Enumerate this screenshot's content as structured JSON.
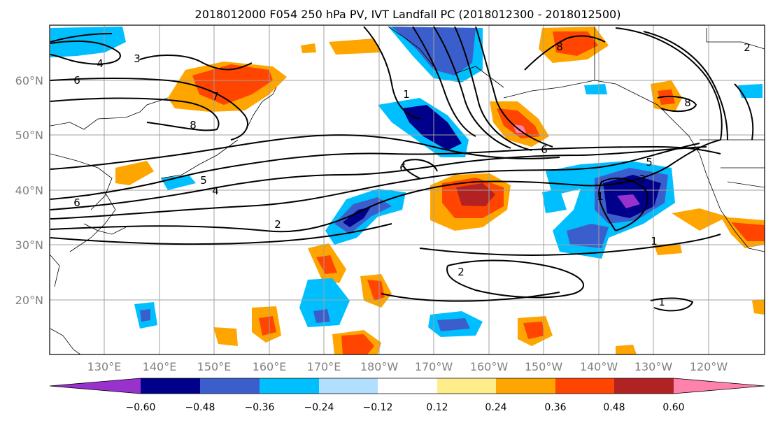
{
  "title": "2018012000 F054 250 hPa PV, IVT Landfall PC (2018012300 - 2018012500)",
  "lat_labels": [
    "60°N",
    "50°N",
    "40°N",
    "30°N",
    "20°N"
  ],
  "lon_labels": [
    "130°E",
    "140°E",
    "150°E",
    "160°E",
    "170°E",
    "180°W",
    "170°W",
    "160°W",
    "150°W",
    "140°W",
    "130°W",
    "120°W"
  ],
  "colorbar": {
    "ticks": [
      "−0.60",
      "−0.48",
      "−0.36",
      "−0.24",
      "−0.12",
      "0.12",
      "0.24",
      "0.36",
      "0.48",
      "0.60"
    ],
    "colors": [
      "#9932cc",
      "#00008b",
      "#3a5fcd",
      "#00bfff",
      "#b2dfff",
      "#ffffff",
      "#ffec8b",
      "#ffa500",
      "#ff4500",
      "#b22222",
      "#ff82ab"
    ]
  },
  "contour_labels": [
    "3",
    "4",
    "6",
    "7",
    "8",
    "1",
    "8",
    "6",
    "6",
    "5",
    "4",
    "2",
    "5",
    "3",
    "1",
    "1",
    "2",
    "1",
    "8",
    "6",
    "2"
  ]
}
